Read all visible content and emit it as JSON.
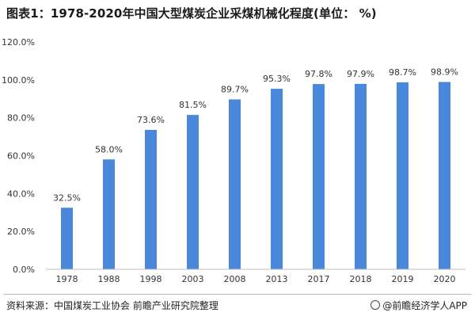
{
  "chart_data": {
    "type": "bar",
    "title": "图表1：1978-2020年中国大型煤炭企业采煤机械化程度(单位： %)",
    "categories": [
      "1978",
      "1988",
      "1998",
      "2003",
      "2008",
      "2013",
      "2017",
      "2018",
      "2019",
      "2020"
    ],
    "values": [
      32.5,
      58.0,
      73.6,
      81.5,
      89.7,
      95.3,
      97.8,
      97.9,
      98.7,
      98.9
    ],
    "value_labels": [
      "32.5%",
      "58.0%",
      "73.6%",
      "81.5%",
      "89.7%",
      "95.3%",
      "97.8%",
      "97.9%",
      "98.7%",
      "98.9%"
    ],
    "y_ticks": [
      0,
      20,
      40,
      60,
      80,
      100,
      120
    ],
    "y_tick_labels": [
      "0.0%",
      "20.0%",
      "40.0%",
      "60.0%",
      "80.0%",
      "100.0%",
      "120.0%"
    ],
    "ylim": [
      0,
      120
    ],
    "xlabel": "",
    "ylabel": "",
    "grid": false,
    "bar_color": "#4a88db"
  },
  "footer": {
    "source": "资料来源：中国煤炭工业协会 前瞻产业研究院整理",
    "brand": "@前瞻经济学人APP"
  }
}
